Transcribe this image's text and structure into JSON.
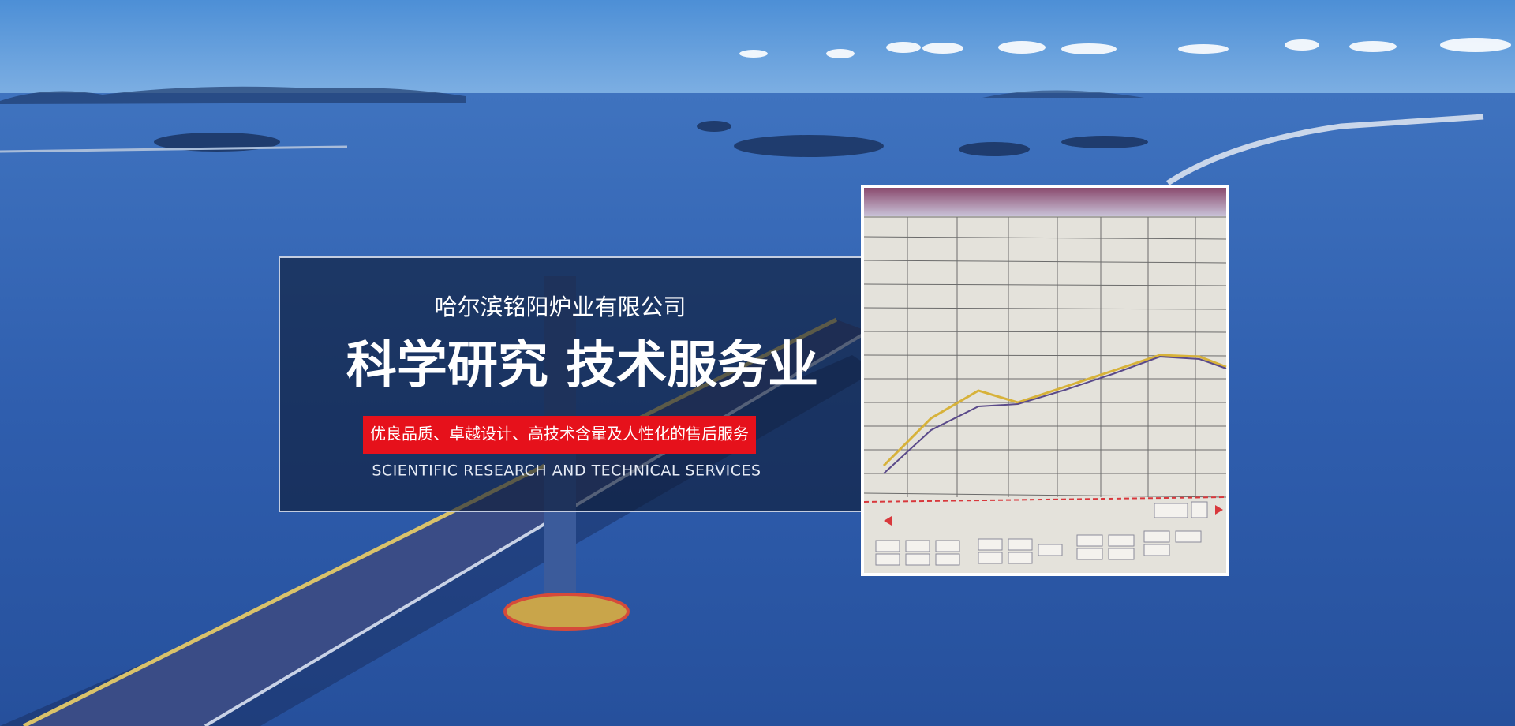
{
  "header": {
    "company": "哈尔滨铭阳炉业有限公司",
    "headline": "科学研究 技术服务业",
    "tagline": "优良品质、卓越设计、高技术含量及人性化的售后服务",
    "subtitle": "SCIENTIFIC RESEARCH AND TECHNICAL SERVICES"
  }
}
